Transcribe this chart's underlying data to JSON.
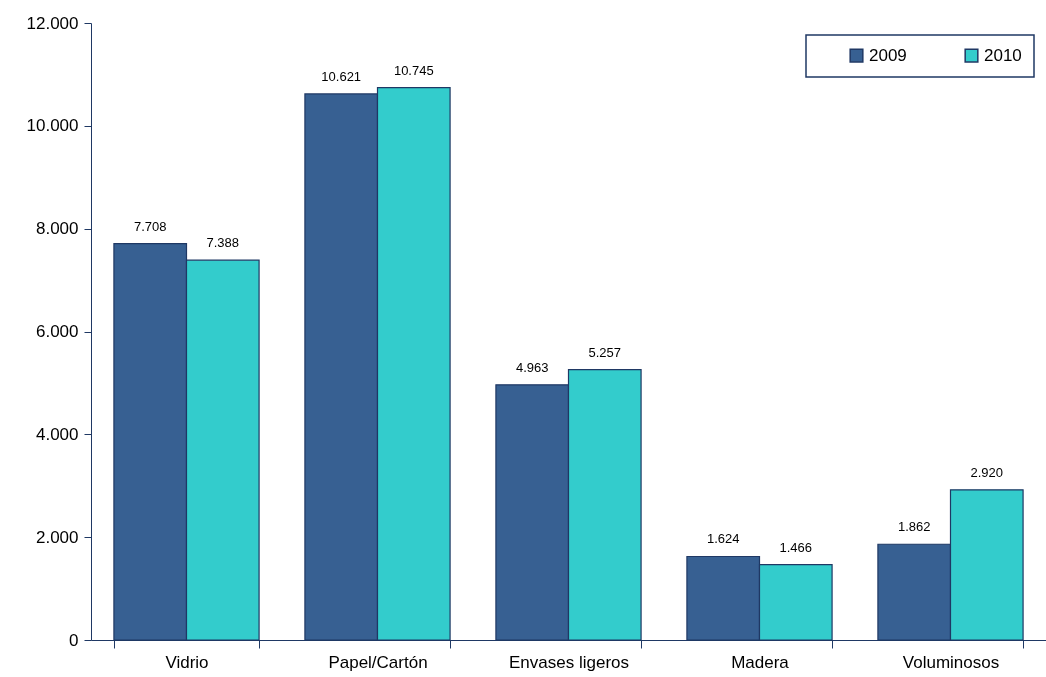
{
  "chart_data": {
    "type": "bar",
    "categories": [
      "Vidrio",
      "Papel/Cartón",
      "Envases ligeros",
      "Madera",
      "Voluminosos"
    ],
    "series": [
      {
        "name": "2009",
        "color": "#376092",
        "values": [
          7708,
          10621,
          4963,
          1624,
          1862
        ],
        "value_labels": [
          "7.708",
          "10.621",
          "4.963",
          "1.624",
          "1.862"
        ]
      },
      {
        "name": "2010",
        "color": "#33cccc",
        "values": [
          7388,
          10745,
          5257,
          1466,
          2920
        ],
        "value_labels": [
          "7.388",
          "10.745",
          "5.257",
          "1.466",
          "2.920"
        ]
      }
    ],
    "ylim": [
      0,
      12000
    ],
    "yticks": [
      0,
      {
        "value": 2000,
        "label": "2.000"
      },
      {
        "value": 4000,
        "label": "4.000"
      },
      {
        "value": 6000,
        "label": "6.000"
      },
      {
        "value": 8000,
        "label": "8.000"
      },
      {
        "value": 10000,
        "label": "10.000"
      },
      {
        "value": 12000,
        "label": "12.000"
      }
    ],
    "grid": false,
    "legend": "top right"
  }
}
